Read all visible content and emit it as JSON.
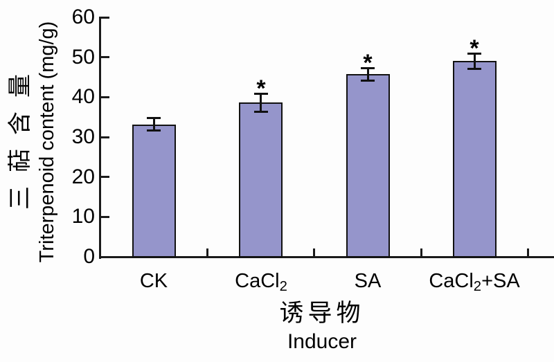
{
  "chart_data": {
    "type": "bar",
    "title": "",
    "categories": [
      {
        "name": "CK",
        "segments": [
          {
            "text": "CK",
            "sub": false
          }
        ]
      },
      {
        "name": "CaCl2",
        "segments": [
          {
            "text": "CaCl",
            "sub": false
          },
          {
            "text": "2",
            "sub": true
          }
        ]
      },
      {
        "name": "SA",
        "segments": [
          {
            "text": "SA",
            "sub": false
          }
        ]
      },
      {
        "name": "CaCl2+SA",
        "segments": [
          {
            "text": "CaCl",
            "sub": false
          },
          {
            "text": "2",
            "sub": true
          },
          {
            "text": "+SA",
            "sub": false
          }
        ]
      }
    ],
    "values": [
      33.2,
      38.6,
      45.7,
      49.0
    ],
    "errors": [
      1.5,
      2.3,
      1.6,
      1.9
    ],
    "significance": [
      "",
      "*",
      "*",
      "*"
    ],
    "ylabel_zh": "三萜含量",
    "ylabel_en": "Triterpenoid content (mg/g)",
    "xlabel_zh": "诱导物",
    "xlabel_en": "Inducer",
    "ylim": [
      0,
      60
    ],
    "yticks": [
      0,
      10,
      20,
      30,
      40,
      50,
      60
    ],
    "ytick_labels": [
      "0",
      "10",
      "20",
      "30",
      "40",
      "50",
      "60"
    ],
    "grid": false,
    "legend": "none",
    "bar_color": "#9595CB",
    "bar_border_color": "#111111",
    "error_bar_color": "#111111",
    "axis_color": "#1a1a1a",
    "text_color": "#000000",
    "background_color": "#FDFDFD"
  }
}
